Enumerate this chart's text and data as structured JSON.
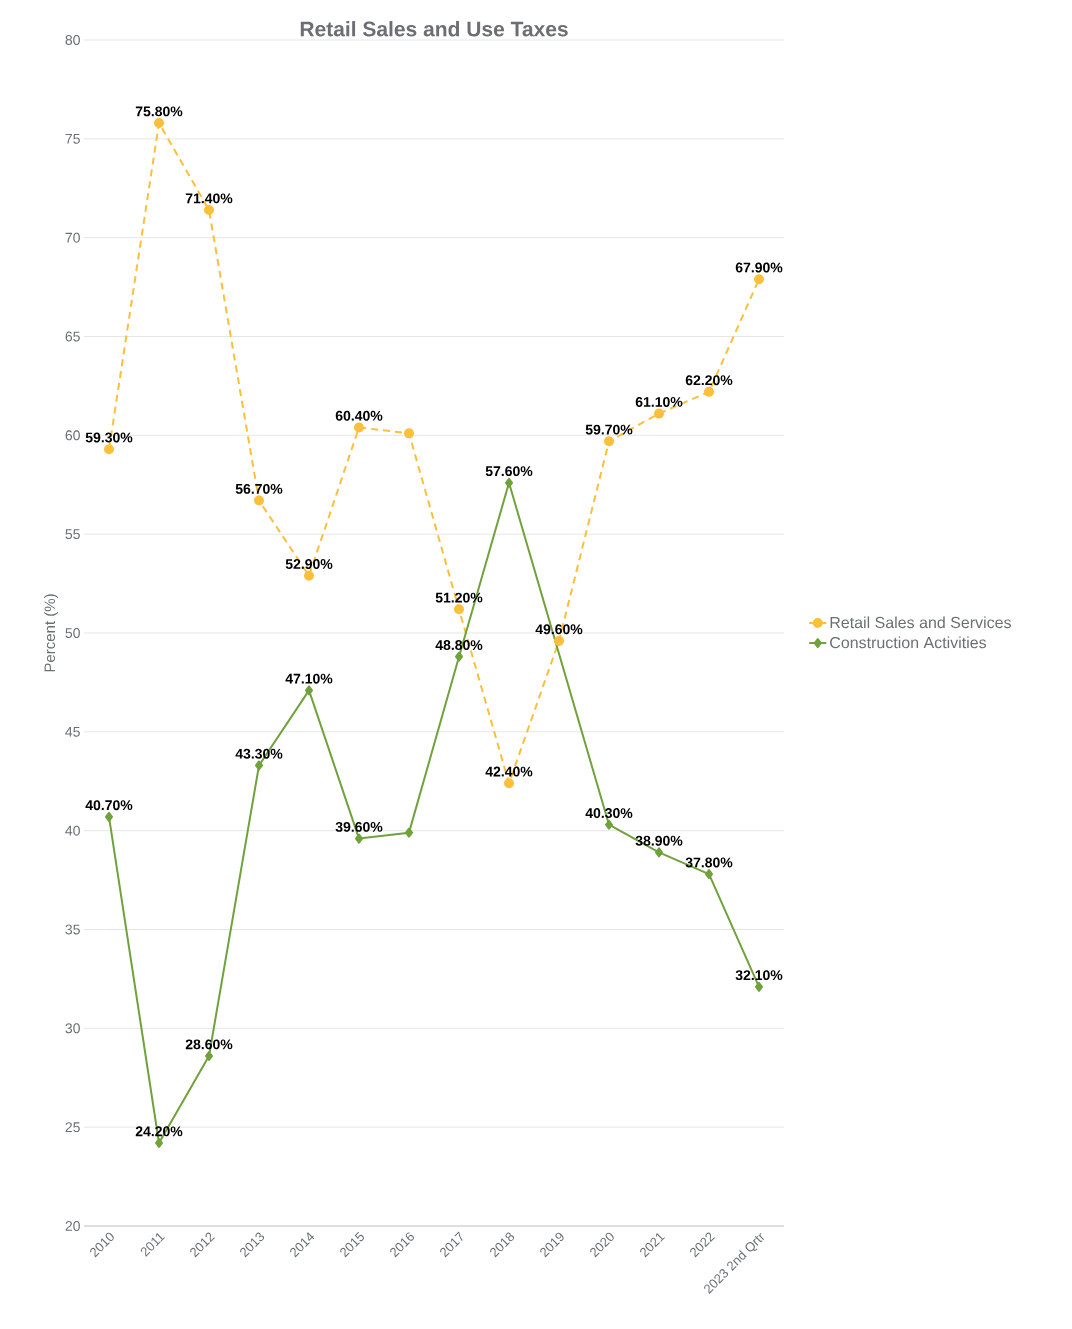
{
  "chart_data": {
    "type": "line",
    "title": "Retail Sales and Use Taxes",
    "ylabel": "Percent (%)",
    "categories": [
      "2010",
      "2011",
      "2012",
      "2013",
      "2014",
      "2015",
      "2016",
      "2017",
      "2018",
      "2019",
      "2020",
      "2021",
      "2022",
      "2023 2nd Qrtr"
    ],
    "series": [
      {
        "name": "Retail Sales and Services",
        "color": "#fbbf3c",
        "marker": "circle",
        "line_style": "dashed",
        "values": [
          59.3,
          75.8,
          71.4,
          56.7,
          52.9,
          60.4,
          60.1,
          51.2,
          42.4,
          49.6,
          59.7,
          61.1,
          62.2,
          67.9
        ],
        "value_labels": [
          "59.30%",
          "75.80%",
          "71.40%",
          "56.70%",
          "52.90%",
          "60.40%",
          null,
          "51.20%",
          "42.40%",
          "49.60%",
          "59.70%",
          "61.10%",
          "62.20%",
          "67.90%"
        ]
      },
      {
        "name": "Construction Activities",
        "color": "#70a23c",
        "marker": "diamond",
        "line_style": "solid",
        "values": [
          40.7,
          24.2,
          28.6,
          43.3,
          47.1,
          39.6,
          39.9,
          48.8,
          57.6,
          null,
          40.3,
          38.9,
          37.8,
          32.1
        ],
        "value_labels": [
          "40.70%",
          "24.20%",
          "28.60%",
          "43.30%",
          "47.10%",
          "39.60%",
          null,
          "48.80%",
          "57.60%",
          null,
          "40.30%",
          "38.90%",
          "37.80%",
          "32.10%"
        ]
      }
    ],
    "ylim": [
      20,
      80
    ],
    "yticks": [
      20,
      25,
      30,
      35,
      40,
      45,
      50,
      55,
      60,
      65,
      70,
      75,
      80
    ],
    "grid": "y",
    "legend": "right"
  }
}
